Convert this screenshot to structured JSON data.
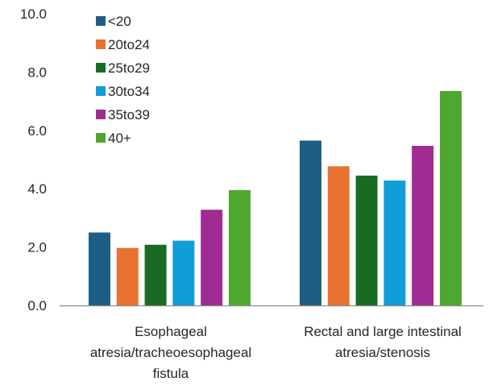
{
  "chart_data": {
    "type": "bar",
    "title": "",
    "xlabel": "",
    "ylabel": "",
    "ylim": [
      0,
      10
    ],
    "y_ticks": [
      "0.0",
      "2.0",
      "4.0",
      "6.0",
      "8.0",
      "10.0"
    ],
    "categories": [
      [
        "Esophageal",
        "atresia/tracheoesophageal",
        "fistula"
      ],
      [
        "Rectal and large intestinal",
        "atresia/stenosis"
      ]
    ],
    "series": [
      {
        "name": "<20",
        "color": "#1f5e84",
        "values": [
          2.5,
          5.65
        ]
      },
      {
        "name": "20to24",
        "color": "#e97132",
        "values": [
          1.97,
          4.77
        ]
      },
      {
        "name": "25to29",
        "color": "#196b24",
        "values": [
          2.08,
          4.45
        ]
      },
      {
        "name": "30to34",
        "color": "#0f9ed5",
        "values": [
          2.22,
          4.28
        ]
      },
      {
        "name": "35to39",
        "color": "#a02b93",
        "values": [
          3.28,
          5.47
        ]
      },
      {
        "name": "40+",
        "color": "#4ea72e",
        "values": [
          3.95,
          7.35
        ]
      }
    ],
    "legend_position": "top-left",
    "grid": false
  }
}
